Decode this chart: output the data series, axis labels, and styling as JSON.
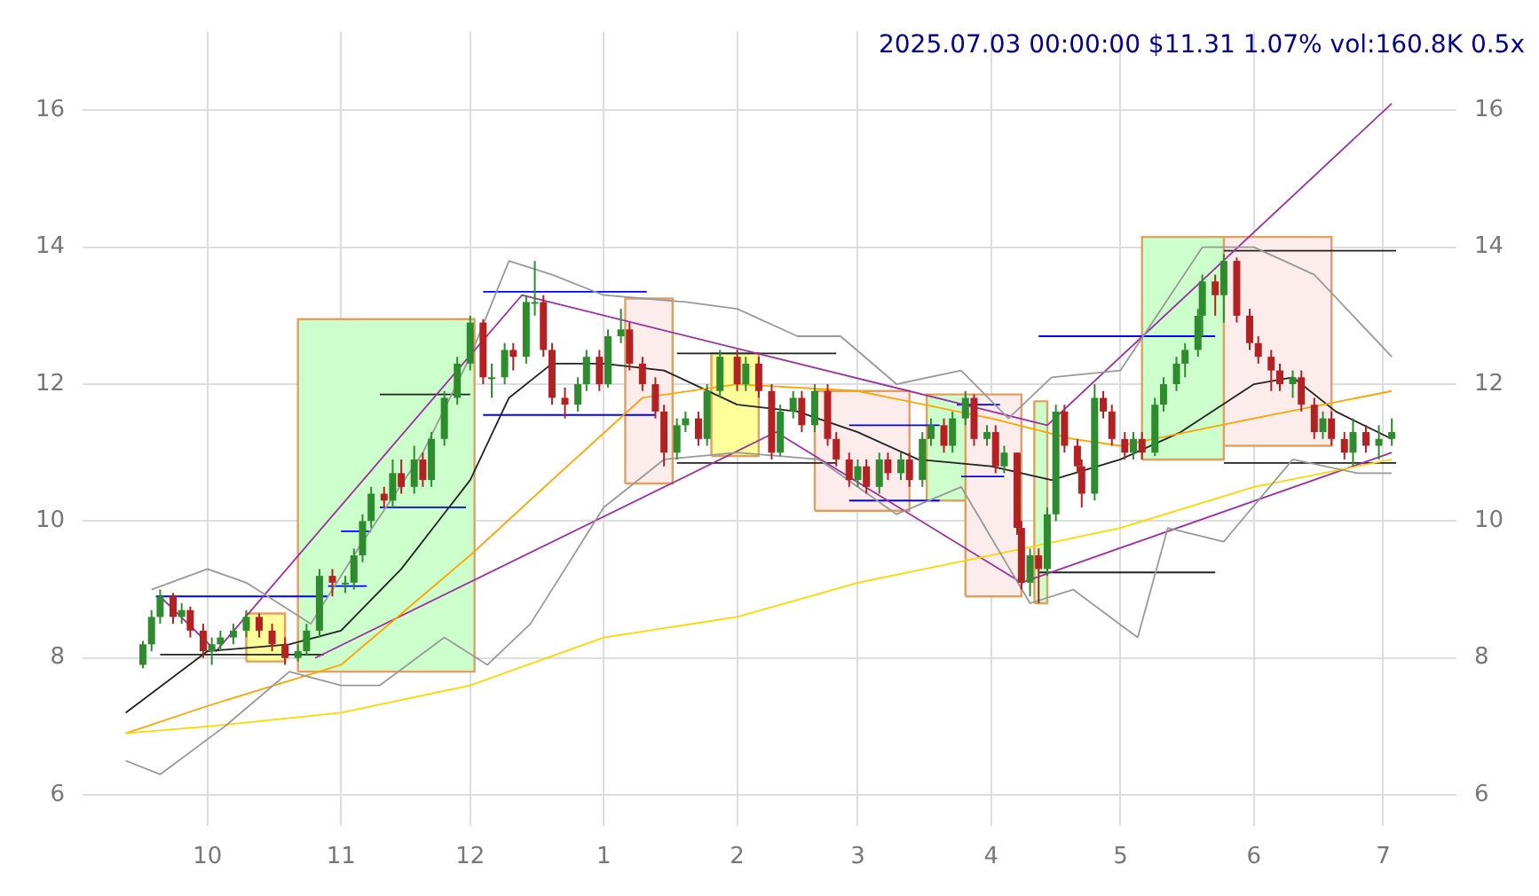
{
  "chart_data": {
    "type": "candlestick",
    "annotations": [
      "2025.07.03 00:00:00 $11.31 1.07% vol:160.8K 0.5x"
    ],
    "x": [
      "2024-09-16",
      "2024-09-18",
      "2024-09-20",
      "2024-09-23",
      "2024-09-25",
      "2024-09-27",
      "2024-09-30",
      "2024-10-02",
      "2024-10-04",
      "2024-10-07",
      "2024-10-10",
      "2024-10-13",
      "2024-10-16",
      "2024-10-19",
      "2024-10-22",
      "2024-10-24",
      "2024-10-27",
      "2024-10-30",
      "2024-11-02",
      "2024-11-04",
      "2024-11-06",
      "2024-11-08",
      "2024-11-11",
      "2024-11-13",
      "2024-11-15",
      "2024-11-18",
      "2024-11-20",
      "2024-11-22",
      "2024-11-25",
      "2024-11-28",
      "2024-12-01",
      "2024-12-04",
      "2024-12-06",
      "2024-12-09",
      "2024-12-11",
      "2024-12-14",
      "2024-12-16",
      "2024-12-18",
      "2024-12-20",
      "2024-12-23",
      "2024-12-26",
      "2024-12-28",
      "2024-12-31",
      "2025-01-02",
      "2025-01-05",
      "2025-01-07",
      "2025-01-10",
      "2025-01-13",
      "2025-01-15",
      "2025-01-18",
      "2025-01-20",
      "2025-01-23",
      "2025-01-25",
      "2025-01-28",
      "2025-02-01",
      "2025-02-03",
      "2025-02-06",
      "2025-02-09",
      "2025-02-11",
      "2025-02-14",
      "2025-02-16",
      "2025-02-19",
      "2025-02-22",
      "2025-02-24",
      "2025-02-27",
      "2025-03-01",
      "2025-03-03",
      "2025-03-06",
      "2025-03-08",
      "2025-03-11",
      "2025-03-13",
      "2025-03-16",
      "2025-03-18",
      "2025-03-21",
      "2025-03-23",
      "2025-03-26",
      "2025-03-28",
      "2025-03-31",
      "2025-04-02",
      "2025-04-04",
      "2025-04-07",
      "2025-04-08",
      "2025-04-10",
      "2025-04-12",
      "2025-04-14",
      "2025-04-16",
      "2025-04-18",
      "2025-04-21",
      "2025-04-22",
      "2025-04-25",
      "2025-04-27",
      "2025-04-29",
      "2025-05-02",
      "2025-05-04",
      "2025-05-06",
      "2025-05-09",
      "2025-05-11",
      "2025-05-14",
      "2025-05-16",
      "2025-05-19",
      "2025-05-20",
      "2025-05-23",
      "2025-05-25",
      "2025-05-28",
      "2025-05-31",
      "2025-06-02",
      "2025-06-05",
      "2025-06-07",
      "2025-06-10",
      "2025-06-12",
      "2025-06-15",
      "2025-06-17",
      "2025-06-19",
      "2025-06-22",
      "2025-06-24",
      "2025-06-27",
      "2025-06-30",
      "2025-07-03"
    ],
    "ohlc": [
      [
        7.9,
        8.25,
        7.85,
        8.2
      ],
      [
        8.2,
        8.7,
        8.1,
        8.6
      ],
      [
        8.6,
        9.0,
        8.5,
        8.9
      ],
      [
        8.9,
        8.95,
        8.5,
        8.6
      ],
      [
        8.6,
        8.8,
        8.5,
        8.7
      ],
      [
        8.7,
        8.75,
        8.3,
        8.4
      ],
      [
        8.4,
        8.5,
        8.0,
        8.1
      ],
      [
        8.1,
        8.3,
        7.9,
        8.2
      ],
      [
        8.2,
        8.4,
        8.1,
        8.3
      ],
      [
        8.3,
        8.5,
        8.2,
        8.4
      ],
      [
        8.4,
        8.7,
        8.3,
        8.6
      ],
      [
        8.6,
        8.65,
        8.3,
        8.4
      ],
      [
        8.4,
        8.5,
        8.1,
        8.2
      ],
      [
        8.2,
        8.3,
        7.9,
        8.0
      ],
      [
        8.0,
        8.2,
        7.95,
        8.1
      ],
      [
        8.1,
        8.5,
        8.05,
        8.4
      ],
      [
        8.4,
        9.3,
        8.3,
        9.2
      ],
      [
        9.2,
        9.3,
        8.9,
        9.1
      ],
      [
        9.1,
        9.2,
        8.95,
        9.1
      ],
      [
        9.1,
        9.6,
        9.0,
        9.5
      ],
      [
        9.5,
        10.1,
        9.4,
        10.0
      ],
      [
        10.0,
        10.5,
        9.9,
        10.4
      ],
      [
        10.4,
        10.5,
        10.2,
        10.3
      ],
      [
        10.3,
        10.9,
        10.2,
        10.7
      ],
      [
        10.7,
        10.9,
        10.4,
        10.5
      ],
      [
        10.5,
        11.1,
        10.4,
        10.9
      ],
      [
        10.9,
        11.0,
        10.5,
        10.6
      ],
      [
        10.6,
        11.3,
        10.5,
        11.2
      ],
      [
        11.2,
        11.9,
        11.1,
        11.8
      ],
      [
        11.8,
        12.4,
        11.7,
        12.3
      ],
      [
        12.3,
        13.0,
        12.2,
        12.9
      ],
      [
        12.9,
        12.95,
        12.0,
        12.1
      ],
      [
        12.1,
        12.3,
        11.8,
        12.1
      ],
      [
        12.1,
        12.6,
        12.0,
        12.5
      ],
      [
        12.5,
        12.6,
        12.2,
        12.4
      ],
      [
        12.4,
        13.3,
        12.3,
        13.2
      ],
      [
        13.2,
        13.8,
        13.0,
        13.2
      ],
      [
        13.2,
        13.3,
        12.4,
        12.5
      ],
      [
        12.5,
        12.6,
        11.7,
        11.8
      ],
      [
        11.8,
        11.95,
        11.5,
        11.7
      ],
      [
        11.7,
        12.1,
        11.6,
        12.0
      ],
      [
        12.0,
        12.5,
        11.9,
        12.4
      ],
      [
        12.4,
        12.5,
        11.9,
        12.0
      ],
      [
        12.0,
        12.8,
        11.95,
        12.7
      ],
      [
        12.7,
        13.1,
        12.6,
        12.8
      ],
      [
        12.8,
        12.9,
        12.2,
        12.3
      ],
      [
        12.3,
        12.4,
        11.9,
        12.0
      ],
      [
        12.0,
        12.1,
        11.5,
        11.6
      ],
      [
        11.6,
        11.7,
        10.8,
        11.0
      ],
      [
        11.0,
        11.5,
        10.9,
        11.4
      ],
      [
        11.4,
        11.6,
        11.3,
        11.5
      ],
      [
        11.5,
        11.6,
        11.1,
        11.2
      ],
      [
        11.2,
        12.0,
        11.1,
        11.9
      ],
      [
        11.9,
        12.5,
        11.8,
        12.4
      ],
      [
        12.4,
        12.5,
        11.9,
        12.0
      ],
      [
        12.0,
        12.4,
        11.9,
        12.3
      ],
      [
        12.3,
        12.4,
        11.8,
        11.9
      ],
      [
        11.9,
        12.0,
        10.9,
        11.0
      ],
      [
        11.0,
        11.7,
        10.95,
        11.6
      ],
      [
        11.6,
        11.9,
        11.5,
        11.8
      ],
      [
        11.8,
        11.9,
        11.3,
        11.4
      ],
      [
        11.4,
        12.0,
        11.3,
        11.9
      ],
      [
        11.9,
        12.0,
        11.1,
        11.2
      ],
      [
        11.2,
        11.3,
        10.8,
        10.9
      ],
      [
        10.9,
        11.0,
        10.5,
        10.6
      ],
      [
        10.6,
        10.9,
        10.5,
        10.8
      ],
      [
        10.8,
        10.9,
        10.4,
        10.5
      ],
      [
        10.5,
        11.0,
        10.4,
        10.9
      ],
      [
        10.9,
        11.0,
        10.6,
        10.7
      ],
      [
        10.7,
        11.0,
        10.6,
        10.9
      ],
      [
        10.9,
        11.0,
        10.5,
        10.6
      ],
      [
        10.6,
        11.3,
        10.5,
        11.2
      ],
      [
        11.2,
        11.5,
        11.1,
        11.4
      ],
      [
        11.4,
        11.5,
        11.0,
        11.1
      ],
      [
        11.1,
        11.6,
        11.0,
        11.5
      ],
      [
        11.5,
        11.9,
        11.4,
        11.8
      ],
      [
        11.8,
        11.85,
        11.1,
        11.2
      ],
      [
        11.2,
        11.4,
        11.1,
        11.3
      ],
      [
        11.3,
        11.4,
        10.7,
        10.8
      ],
      [
        10.8,
        11.1,
        10.7,
        11.0
      ],
      [
        11.0,
        11.0,
        9.8,
        9.9
      ],
      [
        9.9,
        10.0,
        9.0,
        9.1
      ],
      [
        9.1,
        9.6,
        8.9,
        9.5
      ],
      [
        9.5,
        9.6,
        8.8,
        9.3
      ],
      [
        9.3,
        10.2,
        9.2,
        10.1
      ],
      [
        10.1,
        11.7,
        10.0,
        11.6
      ],
      [
        11.6,
        11.7,
        11.0,
        11.1
      ],
      [
        11.1,
        11.2,
        10.7,
        10.8
      ],
      [
        10.8,
        10.9,
        10.2,
        10.4
      ],
      [
        10.4,
        12.0,
        10.3,
        11.8
      ],
      [
        11.8,
        11.9,
        11.5,
        11.6
      ],
      [
        11.6,
        11.7,
        11.1,
        11.2
      ],
      [
        11.2,
        11.3,
        10.9,
        11.0
      ],
      [
        11.0,
        11.3,
        10.9,
        11.2
      ],
      [
        11.2,
        11.3,
        10.9,
        11.0
      ],
      [
        11.0,
        11.8,
        10.95,
        11.7
      ],
      [
        11.7,
        12.1,
        11.6,
        12.0
      ],
      [
        12.0,
        12.4,
        11.9,
        12.3
      ],
      [
        12.3,
        12.6,
        12.1,
        12.5
      ],
      [
        12.5,
        13.1,
        12.4,
        13.0
      ],
      [
        13.0,
        13.6,
        12.7,
        13.5
      ],
      [
        13.5,
        13.6,
        13.0,
        13.3
      ],
      [
        13.3,
        13.9,
        12.9,
        13.8
      ],
      [
        13.8,
        13.85,
        12.9,
        13.0
      ],
      [
        13.0,
        13.1,
        12.5,
        12.6
      ],
      [
        12.6,
        12.7,
        12.3,
        12.4
      ],
      [
        12.4,
        12.5,
        11.9,
        12.2
      ],
      [
        12.2,
        12.3,
        11.9,
        12.0
      ],
      [
        12.0,
        12.2,
        11.8,
        12.1
      ],
      [
        12.1,
        12.2,
        11.6,
        11.7
      ],
      [
        11.7,
        11.8,
        11.2,
        11.3
      ],
      [
        11.3,
        11.6,
        11.2,
        11.5
      ],
      [
        11.5,
        11.6,
        11.1,
        11.2
      ],
      [
        11.2,
        11.3,
        10.9,
        11.0
      ],
      [
        11.0,
        11.5,
        10.8,
        11.3
      ],
      [
        11.3,
        11.4,
        11.0,
        11.1
      ],
      [
        11.1,
        11.4,
        10.9,
        11.2
      ],
      [
        11.2,
        11.5,
        11.1,
        11.3
      ]
    ],
    "series": [
      {
        "type": "area",
        "color": "#ffff99",
        "x": [
          "2024-10-10",
          "2024-10-10",
          "2024-10-19",
          "2024-10-19",
          "2024-10-10"
        ],
        "values": [
          7.95,
          8.65,
          8.65,
          7.95,
          7.95
        ]
      },
      {
        "type": "area",
        "color": "#ccffcc",
        "x": [
          "2024-10-22",
          "2024-10-22",
          "2024-12-02",
          "2024-12-02",
          "2024-10-22"
        ],
        "values": [
          7.8,
          12.95,
          12.95,
          7.8,
          7.8
        ]
      },
      {
        "type": "area",
        "color": "#fdecec",
        "x": [
          "2025-01-06",
          "2025-01-06",
          "2025-01-17",
          "2025-01-17",
          "2025-01-06"
        ],
        "values": [
          10.55,
          13.25,
          13.25,
          10.55,
          10.55
        ]
      },
      {
        "type": "area",
        "color": "#ffff99",
        "x": [
          "2025-01-26",
          "2025-01-26",
          "2025-02-06",
          "2025-02-06",
          "2025-01-26"
        ],
        "values": [
          10.95,
          12.45,
          12.45,
          10.95,
          10.95
        ]
      },
      {
        "type": "area",
        "color": "#fdecec",
        "x": [
          "2025-02-19",
          "2025-02-19",
          "2025-03-13",
          "2025-03-13",
          "2025-02-19"
        ],
        "values": [
          10.15,
          11.9,
          11.9,
          10.15,
          10.15
        ]
      },
      {
        "type": "area",
        "color": "#ccffcc",
        "x": [
          "2025-03-17",
          "2025-03-17",
          "2025-03-26",
          "2025-03-26",
          "2025-03-17"
        ],
        "values": [
          10.3,
          11.85,
          11.85,
          10.3,
          10.3
        ]
      },
      {
        "type": "area",
        "color": "#fdecec",
        "x": [
          "2025-03-26",
          "2025-03-26",
          "2025-04-08",
          "2025-04-08",
          "2025-03-26"
        ],
        "values": [
          8.9,
          11.85,
          11.85,
          8.9,
          8.9
        ]
      },
      {
        "type": "area",
        "color": "#ccffcc",
        "x": [
          "2025-04-11",
          "2025-04-11",
          "2025-04-14",
          "2025-04-14",
          "2025-04-11"
        ],
        "values": [
          8.8,
          11.75,
          11.75,
          8.8,
          8.8
        ]
      },
      {
        "type": "area",
        "color": "#ccffcc",
        "x": [
          "2025-05-06",
          "2025-05-06",
          "2025-05-25",
          "2025-05-25",
          "2025-05-06"
        ],
        "values": [
          10.9,
          14.15,
          14.15,
          10.9,
          10.9
        ]
      },
      {
        "type": "area",
        "color": "#fdecec",
        "x": [
          "2025-05-25",
          "2025-05-25",
          "2025-06-19",
          "2025-06-19",
          "2025-05-25"
        ],
        "values": [
          11.1,
          14.15,
          14.15,
          11.1,
          11.1
        ]
      },
      {
        "type": "line",
        "color": "#999999",
        "x": [
          "2024-09-18",
          "2024-10-01",
          "2024-10-10",
          "2024-10-25",
          "2024-11-05",
          "2024-11-20",
          "2024-12-01",
          "2024-12-10",
          "2024-12-20",
          "2025-01-01",
          "2025-01-20",
          "2025-02-01",
          "2025-02-15",
          "2025-02-25",
          "2025-03-10",
          "2025-03-25",
          "2025-04-05",
          "2025-04-15",
          "2025-05-01",
          "2025-05-20",
          "2025-06-01",
          "2025-06-15",
          "2025-07-03"
        ],
        "values": [
          9.0,
          9.3,
          9.1,
          8.5,
          9.6,
          11.0,
          12.4,
          13.8,
          13.6,
          13.3,
          13.2,
          13.1,
          12.7,
          12.7,
          12.0,
          12.2,
          11.5,
          12.1,
          12.2,
          14.0,
          14.0,
          13.6,
          12.4
        ]
      },
      {
        "type": "line",
        "color": "#999999",
        "x": [
          "2024-09-12",
          "2024-09-20",
          "2024-10-05",
          "2024-10-20",
          "2024-11-01",
          "2024-11-10",
          "2024-11-25",
          "2024-12-05",
          "2024-12-15",
          "2025-01-01",
          "2025-01-15",
          "2025-02-01",
          "2025-02-20",
          "2025-03-10",
          "2025-03-25",
          "2025-04-10",
          "2025-04-20",
          "2025-05-05",
          "2025-05-12",
          "2025-05-25",
          "2025-06-10",
          "2025-06-25",
          "2025-07-03"
        ],
        "values": [
          6.5,
          6.3,
          7.0,
          7.8,
          7.6,
          7.6,
          8.3,
          7.9,
          8.5,
          10.2,
          10.9,
          11.0,
          10.9,
          10.1,
          10.5,
          8.8,
          9.0,
          8.3,
          9.9,
          9.7,
          10.9,
          10.7,
          10.7
        ]
      },
      {
        "type": "line",
        "color": "#ffd700",
        "x": [
          "2024-09-12",
          "2024-10-01",
          "2024-11-01",
          "2024-12-01",
          "2025-01-01",
          "2025-02-01",
          "2025-03-01",
          "2025-04-01",
          "2025-05-01",
          "2025-06-01",
          "2025-07-03"
        ],
        "values": [
          6.9,
          7.0,
          7.2,
          7.6,
          8.3,
          8.6,
          9.1,
          9.5,
          9.9,
          10.5,
          10.9
        ]
      },
      {
        "type": "line",
        "color": "#ffa500",
        "x": [
          "2024-09-12",
          "2024-10-01",
          "2024-11-01",
          "2024-12-01",
          "2024-12-20",
          "2025-01-10",
          "2025-02-01",
          "2025-03-01",
          "2025-04-01",
          "2025-04-20",
          "2025-05-01",
          "2025-06-01",
          "2025-07-03"
        ],
        "values": [
          6.9,
          7.3,
          7.9,
          9.5,
          10.6,
          11.8,
          12.0,
          11.9,
          11.5,
          11.2,
          11.1,
          11.5,
          11.9
        ]
      },
      {
        "type": "line",
        "color": "#222222",
        "x": [
          "2024-09-12",
          "2024-10-01",
          "2024-10-20",
          "2024-11-01",
          "2024-11-15",
          "2024-12-01",
          "2024-12-10",
          "2024-12-20",
          "2025-01-01",
          "2025-01-15",
          "2025-02-01",
          "2025-02-15",
          "2025-03-01",
          "2025-03-15",
          "2025-04-01",
          "2025-04-15",
          "2025-05-01",
          "2025-05-15",
          "2025-06-01",
          "2025-06-10",
          "2025-06-20",
          "2025-07-03"
        ],
        "values": [
          7.2,
          8.1,
          8.2,
          8.4,
          9.3,
          10.6,
          11.8,
          12.3,
          12.3,
          12.2,
          11.7,
          11.6,
          11.3,
          10.9,
          10.8,
          10.6,
          10.9,
          11.3,
          12.0,
          12.1,
          11.6,
          11.2
        ]
      },
      {
        "type": "line",
        "color": "#9b30a0",
        "x": [
          "2024-09-20",
          "2024-10-03",
          "2024-12-13",
          "2025-04-14",
          "2025-07-03"
        ],
        "values": [
          8.9,
          8.1,
          13.3,
          11.4,
          16.1
        ]
      },
      {
        "type": "line",
        "color": "#9b30a0",
        "x": [
          "2024-10-26",
          "2025-02-10",
          "2025-04-08",
          "2025-07-03"
        ],
        "values": [
          8.0,
          11.3,
          9.1,
          11.0
        ]
      },
      {
        "type": "line",
        "color": "#0000ff",
        "x": [
          "2024-09-19",
          "2024-10-29"
        ],
        "values": [
          8.9,
          8.9
        ]
      },
      {
        "type": "line",
        "color": "#222222",
        "x": [
          "2024-09-20",
          "2024-10-28"
        ],
        "values": [
          8.05,
          8.05
        ]
      },
      {
        "type": "line",
        "color": "#0000ff",
        "x": [
          "2024-10-29",
          "2024-11-07"
        ],
        "values": [
          9.05,
          9.05
        ]
      },
      {
        "type": "line",
        "color": "#0000ff",
        "x": [
          "2024-11-01",
          "2024-11-08"
        ],
        "values": [
          9.85,
          9.85
        ]
      },
      {
        "type": "line",
        "color": "#0000ff",
        "x": [
          "2024-11-10",
          "2024-11-30"
        ],
        "values": [
          10.2,
          10.2
        ]
      },
      {
        "type": "line",
        "color": "#222222",
        "x": [
          "2024-11-10",
          "2024-12-01"
        ],
        "values": [
          11.85,
          11.85
        ]
      },
      {
        "type": "line",
        "color": "#0000ff",
        "x": [
          "2024-12-04",
          "2025-01-11"
        ],
        "values": [
          13.35,
          13.35
        ]
      },
      {
        "type": "line",
        "color": "#0000ff",
        "x": [
          "2024-12-04",
          "2025-01-13"
        ],
        "values": [
          11.55,
          11.55
        ]
      },
      {
        "type": "line",
        "color": "#222222",
        "x": [
          "2025-01-18",
          "2025-02-24"
        ],
        "values": [
          12.45,
          12.45
        ]
      },
      {
        "type": "line",
        "color": "#222222",
        "x": [
          "2025-01-18",
          "2025-02-24"
        ],
        "values": [
          10.85,
          10.85
        ]
      },
      {
        "type": "line",
        "color": "#0000ff",
        "x": [
          "2025-02-27",
          "2025-03-20"
        ],
        "values": [
          11.4,
          11.4
        ]
      },
      {
        "type": "line",
        "color": "#0000ff",
        "x": [
          "2025-02-27",
          "2025-03-20"
        ],
        "values": [
          10.3,
          10.3
        ]
      },
      {
        "type": "line",
        "color": "#0000ff",
        "x": [
          "2025-03-24",
          "2025-04-03"
        ],
        "values": [
          11.7,
          11.7
        ]
      },
      {
        "type": "line",
        "color": "#0000ff",
        "x": [
          "2025-03-25",
          "2025-04-04"
        ],
        "values": [
          10.65,
          10.65
        ]
      },
      {
        "type": "line",
        "color": "#0000ff",
        "x": [
          "2025-04-12",
          "2025-05-23"
        ],
        "values": [
          12.7,
          12.7
        ]
      },
      {
        "type": "line",
        "color": "#222222",
        "x": [
          "2025-04-12",
          "2025-05-23"
        ],
        "values": [
          9.25,
          9.25
        ]
      },
      {
        "type": "line",
        "color": "#222222",
        "x": [
          "2025-05-25",
          "2025-07-04"
        ],
        "values": [
          13.95,
          13.95
        ]
      },
      {
        "type": "line",
        "color": "#222222",
        "x": [
          "2025-05-25",
          "2025-07-04"
        ],
        "values": [
          10.85,
          10.85
        ]
      }
    ],
    "xlim": [
      "2024-09-02",
      "2025-07-18"
    ],
    "xticks": [
      {
        "value": "2024-10-01",
        "label": "10"
      },
      {
        "value": "2024-11-01",
        "label": "11"
      },
      {
        "value": "2024-12-01",
        "label": "12"
      },
      {
        "value": "2025-01-01",
        "label": "1"
      },
      {
        "value": "2025-02-01",
        "label": "2"
      },
      {
        "value": "2025-03-01",
        "label": "3"
      },
      {
        "value": "2025-04-01",
        "label": "4"
      },
      {
        "value": "2025-05-01",
        "label": "5"
      },
      {
        "value": "2025-06-01",
        "label": "6"
      },
      {
        "value": "2025-07-01",
        "label": "7"
      }
    ],
    "ylim": [
      5.55,
      17.15
    ],
    "yticks": [
      6,
      8,
      10,
      12,
      14,
      16
    ],
    "y2lim": [
      5.55,
      17.15
    ],
    "y2ticks": [
      6,
      8,
      10,
      12,
      14,
      16
    ],
    "grid": true,
    "legend": false
  }
}
